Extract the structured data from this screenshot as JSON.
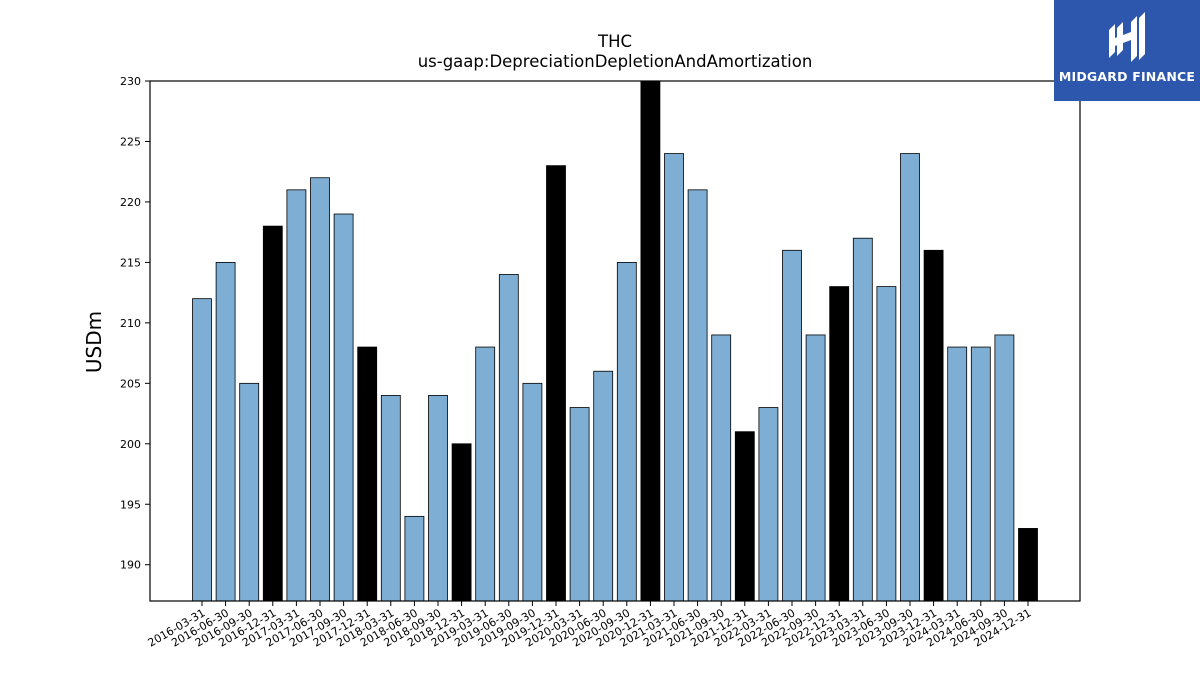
{
  "chart_data": {
    "type": "bar",
    "title": "THC",
    "subtitle": "us-gaap:DepreciationDepletionAndAmortization",
    "xlabel": "",
    "ylabel": "USDm",
    "ylim": [
      187,
      230
    ],
    "yticks": [
      190,
      195,
      200,
      205,
      210,
      215,
      220,
      225,
      230
    ],
    "colors": {
      "quarter": "#7eaed3",
      "year_end": "#000000",
      "edge": "#000000"
    },
    "grid": false,
    "categories": [
      "2016-03-31",
      "2016-06-30",
      "2016-09-30",
      "2016-12-31",
      "2017-03-31",
      "2017-06-30",
      "2017-09-30",
      "2017-12-31",
      "2018-03-31",
      "2018-06-30",
      "2018-09-30",
      "2018-12-31",
      "2019-03-31",
      "2019-06-30",
      "2019-09-30",
      "2019-12-31",
      "2020-03-31",
      "2020-06-30",
      "2020-09-30",
      "2020-12-31",
      "2021-03-31",
      "2021-06-30",
      "2021-09-30",
      "2021-12-31",
      "2022-03-31",
      "2022-06-30",
      "2022-09-30",
      "2022-12-31",
      "2023-03-31",
      "2023-06-30",
      "2023-09-30",
      "2023-12-31",
      "2024-03-31",
      "2024-06-30",
      "2024-09-30",
      "2024-12-31"
    ],
    "values": [
      212,
      215,
      205,
      218,
      221,
      222,
      219,
      208,
      204,
      194,
      204,
      200,
      208,
      214,
      205,
      223,
      203,
      206,
      215,
      230,
      224,
      221,
      209,
      201,
      203,
      216,
      209,
      213,
      217,
      213,
      224,
      216,
      208,
      208,
      209,
      193
    ]
  },
  "logo": {
    "text": "MIDGARD FINANCE",
    "icon": "midgard-logo-icon"
  }
}
